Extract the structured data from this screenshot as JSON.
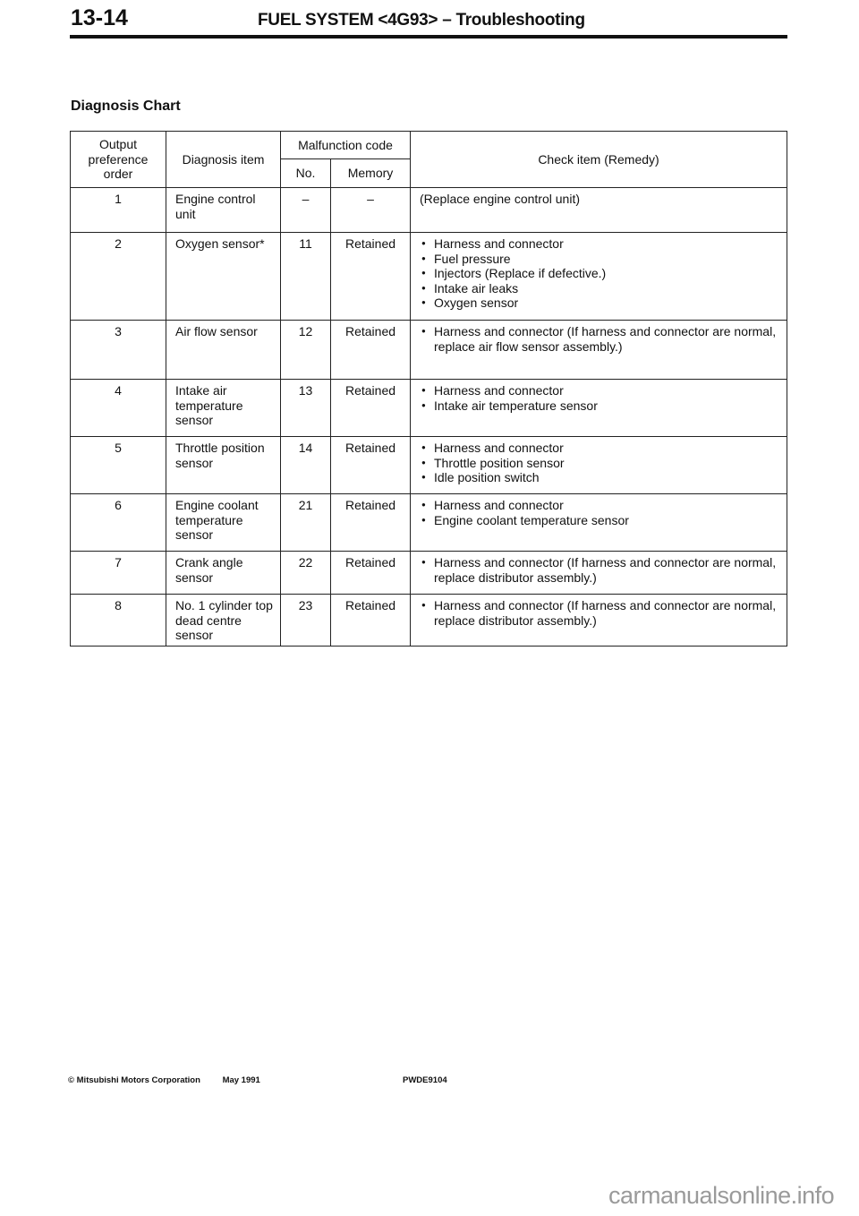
{
  "header": {
    "page_number": "13-14",
    "title": "FUEL SYSTEM <4G93> – Troubleshooting"
  },
  "section_title": "Diagnosis Chart",
  "table": {
    "headers": {
      "order": "Output preference order",
      "item": "Diagnosis item",
      "code": "Malfunction code",
      "no": "No.",
      "memory": "Memory",
      "check": "Check item (Remedy)"
    },
    "rows": [
      {
        "order": "1",
        "item": "Engine control unit",
        "no": "–",
        "memory": "–",
        "check_text": "(Replace engine control unit)",
        "bullets": []
      },
      {
        "order": "2",
        "item": "Oxygen sensor*",
        "no": "11",
        "memory": "Retained",
        "check_text": "",
        "bullets": [
          "Harness and connector",
          "Fuel pressure",
          "Injectors (Replace if defective.)",
          "Intake air leaks",
          "Oxygen sensor"
        ]
      },
      {
        "order": "3",
        "item": "Air flow sensor",
        "no": "12",
        "memory": "Retained",
        "check_text": "",
        "bullets": [
          "Harness and connector (If harness and connector are normal, replace air flow sensor assembly.)"
        ]
      },
      {
        "order": "4",
        "item": "Intake air temperature sensor",
        "no": "13",
        "memory": "Retained",
        "check_text": "",
        "bullets": [
          "Harness and connector",
          "Intake air temperature sensor"
        ]
      },
      {
        "order": "5",
        "item": "Throttle position sensor",
        "no": "14",
        "memory": "Retained",
        "check_text": "",
        "bullets": [
          "Harness and connector",
          "Throttle position sensor",
          "Idle position switch"
        ]
      },
      {
        "order": "6",
        "item": "Engine coolant temperature sensor",
        "no": "21",
        "memory": "Retained",
        "check_text": "",
        "bullets": [
          "Harness and connector",
          "Engine coolant temperature sensor"
        ]
      },
      {
        "order": "7",
        "item": "Crank angle sensor",
        "no": "22",
        "memory": "Retained",
        "check_text": "",
        "bullets": [
          "Harness and connector (If harness and connector are normal, replace distributor assembly.)"
        ]
      },
      {
        "order": "8",
        "item": "No. 1 cylinder top dead centre sensor",
        "no": "23",
        "memory": "Retained",
        "check_text": "",
        "bullets": [
          "Harness and connector (If harness and connector are normal, replace distributor assembly.)"
        ]
      }
    ]
  },
  "footer": {
    "copyright": "© Mitsubishi Motors Corporation",
    "date": "May 1991",
    "code": "PWDE9104"
  },
  "watermark": "carmanualsonline.info"
}
